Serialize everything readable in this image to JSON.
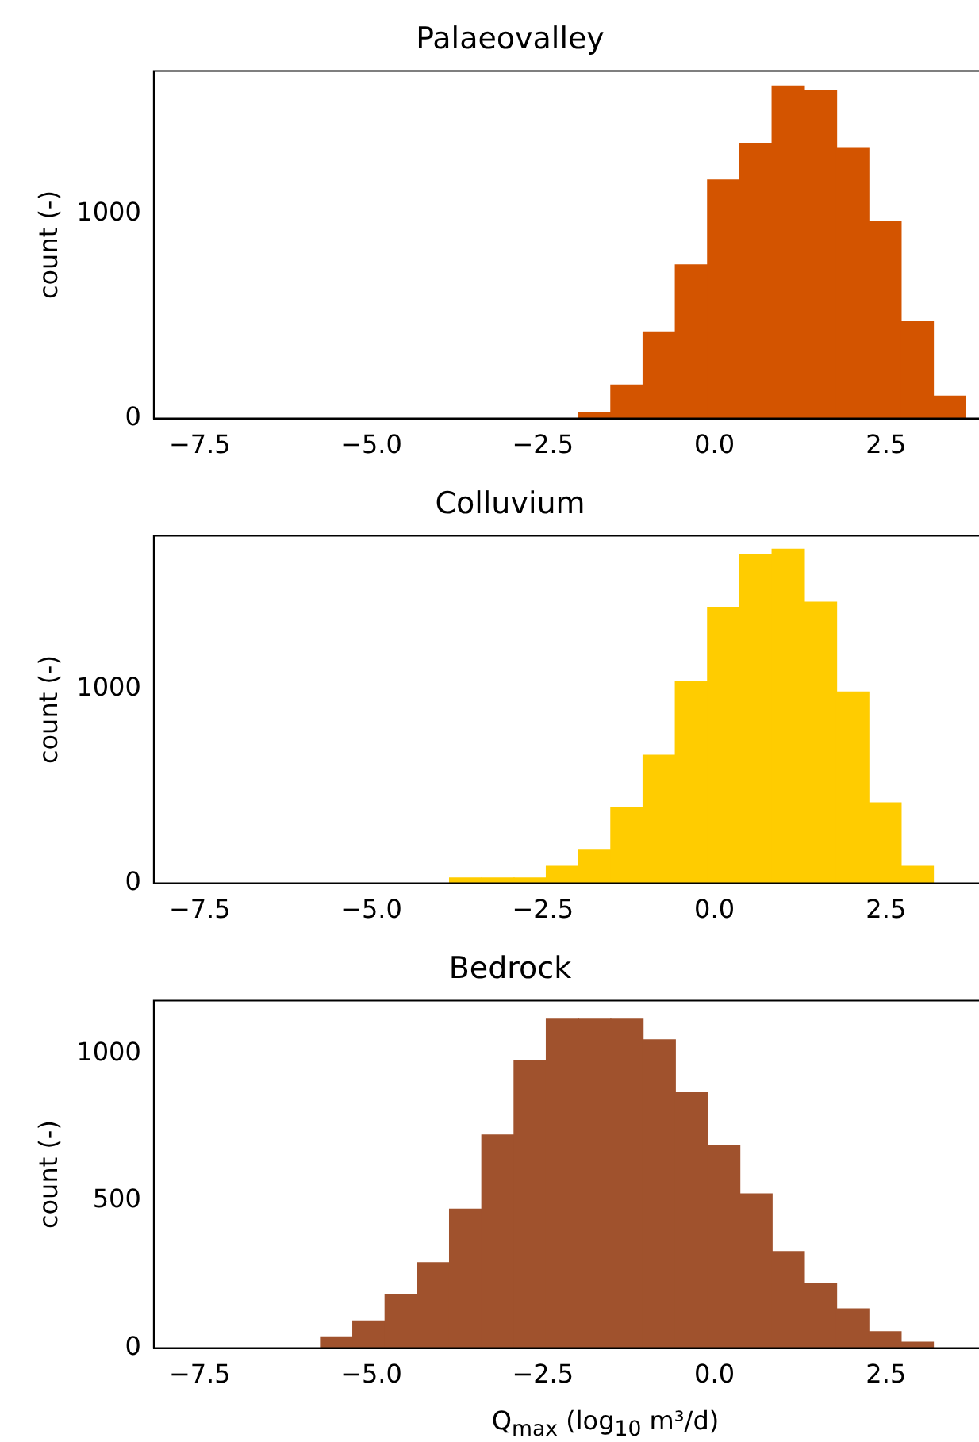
{
  "chart_data": [
    {
      "type": "histogram",
      "title": "Palaeovalley",
      "ylabel": "count (-)",
      "color": "#d35400",
      "bins": [
        -1.98,
        -1.51,
        -1.04,
        -0.57,
        -0.1,
        0.37,
        0.84,
        1.31,
        1.78,
        2.25,
        2.72,
        3.19,
        3.66
      ],
      "values": [
        29,
        164,
        424,
        752,
        1167,
        1347,
        1627,
        1605,
        1325,
        965,
        473,
        109
      ],
      "xlim": [
        -8.17,
        4.04
      ],
      "xticks": [
        {
          "value": -7.5,
          "label": "−7.5"
        },
        {
          "value": -5,
          "label": "−5.0"
        },
        {
          "value": -2.5,
          "label": "−2.5"
        },
        {
          "value": 0,
          "label": "0.0"
        },
        {
          "value": 2.5,
          "label": "2.5"
        }
      ],
      "ylim": [
        0,
        1700
      ],
      "yticks": [
        0,
        1000
      ]
    },
    {
      "type": "histogram",
      "title": "Colluvium",
      "ylabel": "count (-)",
      "color": "#ffcc00",
      "bins": [
        -3.86,
        -3.39,
        -2.92,
        -2.45,
        -1.98,
        -1.51,
        -1.04,
        -0.57,
        -0.1,
        0.37,
        0.84,
        1.31,
        1.78,
        2.25,
        2.72,
        3.19
      ],
      "values": [
        27,
        27,
        27,
        88,
        170,
        391,
        660,
        1041,
        1422,
        1694,
        1721,
        1449,
        986,
        415,
        88
      ],
      "xlim": [
        -8.17,
        4.04
      ],
      "xticks": [
        {
          "value": -7.5,
          "label": "−7.5"
        },
        {
          "value": -5,
          "label": "−5.0"
        },
        {
          "value": -2.5,
          "label": "−2.5"
        },
        {
          "value": 0,
          "label": "0.0"
        },
        {
          "value": 2.5,
          "label": "2.5"
        }
      ],
      "ylim": [
        0,
        1790
      ],
      "yticks": [
        0,
        1000
      ]
    },
    {
      "type": "histogram",
      "title": "Bedrock",
      "ylabel": "count (-)",
      "xlabel": "Q$_{max}$ (log$_{10}$ m³/d)",
      "color": "#a0522d",
      "bins": [
        -5.74,
        -5.27,
        -4.8,
        -4.33,
        -3.86,
        -3.39,
        -2.92,
        -2.45,
        -1.98,
        -1.51,
        -1.04,
        -0.57,
        -0.1,
        0.37,
        0.84,
        1.31,
        1.78,
        2.25,
        2.72,
        3.19
      ],
      "values": [
        38,
        92,
        182,
        290,
        472,
        724,
        975,
        1117,
        1117,
        1117,
        1047,
        867,
        688,
        524,
        328,
        220,
        133,
        56,
        20
      ],
      "xlim": [
        -8.17,
        4.04
      ],
      "xticks": [
        {
          "value": -7.5,
          "label": "−7.5"
        },
        {
          "value": -5,
          "label": "−5.0"
        },
        {
          "value": -2.5,
          "label": "−2.5"
        },
        {
          "value": 0,
          "label": "0.0"
        },
        {
          "value": 2.5,
          "label": "2.5"
        }
      ],
      "ylim": [
        0,
        1180
      ],
      "yticks": [
        0,
        500,
        1000
      ]
    }
  ]
}
